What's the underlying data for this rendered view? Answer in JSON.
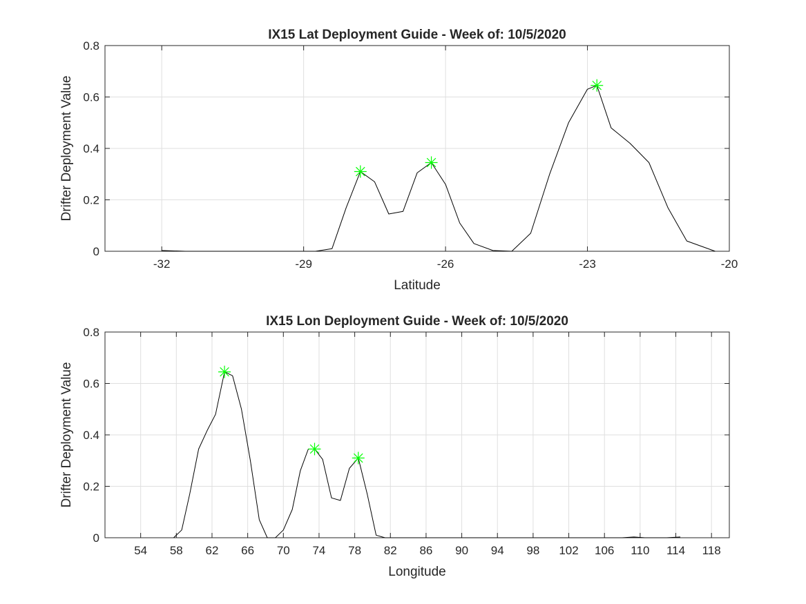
{
  "chart_data": [
    {
      "type": "line",
      "title": "IX15 Lat Deployment Guide - Week of: 10/5/2020",
      "xlabel": "Latitude",
      "ylabel": "Drifter Deployment Value",
      "xlim": [
        -33.2,
        -20
      ],
      "ylim": [
        0,
        0.8
      ],
      "xticks": [
        -32,
        -29,
        -26,
        -23,
        -20
      ],
      "xtick_labels": [
        "-32",
        "-29",
        "-26",
        "-23",
        "-20"
      ],
      "yticks": [
        0,
        0.2,
        0.4,
        0.6,
        0.8
      ],
      "ytick_labels": [
        "0",
        "0.2",
        "0.4",
        "0.6",
        "0.8"
      ],
      "grid": true,
      "series": [
        {
          "color": "#000000",
          "x": [
            -32.0,
            -31.5,
            -30.0,
            -29.0,
            -28.75,
            -28.4,
            -28.1,
            -27.8,
            -27.5,
            -27.2,
            -26.9,
            -26.6,
            -26.3,
            -26.0,
            -25.7,
            -25.4,
            -25.0,
            -24.6,
            -24.2,
            -23.8,
            -23.4,
            -23.0,
            -22.8,
            -22.5,
            -22.1,
            -21.7,
            -21.3,
            -20.9,
            -20.3
          ],
          "y": [
            0.003,
            0.0,
            0.0,
            0.0,
            0.0,
            0.01,
            0.17,
            0.31,
            0.27,
            0.145,
            0.155,
            0.305,
            0.345,
            0.26,
            0.11,
            0.03,
            0.003,
            0.0,
            0.07,
            0.3,
            0.5,
            0.63,
            0.645,
            0.48,
            0.42,
            0.345,
            0.17,
            0.04,
            0.0
          ]
        }
      ],
      "peaks": {
        "color": "#00ff00",
        "marker": "asterisk",
        "x": [
          -27.8,
          -26.3,
          -22.8
        ],
        "y": [
          0.31,
          0.345,
          0.645
        ]
      }
    },
    {
      "type": "line",
      "title": "IX15 Lon Deployment Guide - Week of: 10/5/2020",
      "xlabel": "Longitude",
      "ylabel": "Drifter Deployment Value",
      "xlim": [
        50,
        120
      ],
      "ylim": [
        0,
        0.8
      ],
      "xticks": [
        54,
        58,
        62,
        66,
        70,
        74,
        78,
        82,
        86,
        90,
        94,
        98,
        102,
        106,
        110,
        114,
        118
      ],
      "xtick_labels": [
        "54",
        "58",
        "62",
        "66",
        "70",
        "74",
        "78",
        "82",
        "86",
        "90",
        "94",
        "98",
        "102",
        "106",
        "110",
        "114",
        "118"
      ],
      "yticks": [
        0,
        0.2,
        0.4,
        0.6,
        0.8
      ],
      "ytick_labels": [
        "0",
        "0.2",
        "0.4",
        "0.6",
        "0.8"
      ],
      "grid": true,
      "series": [
        {
          "color": "#000000",
          "x": [
            57.7,
            58.6,
            59.5,
            60.5,
            61.5,
            62.4,
            63.4,
            64.3,
            65.3,
            66.3,
            67.3,
            68.2,
            69.1,
            70.0,
            71.0,
            71.9,
            72.8,
            73.5,
            74.4,
            75.4,
            76.4,
            77.4,
            78.4,
            79.4,
            80.4,
            81.4,
            83,
            100,
            108,
            109.3,
            110.5,
            113,
            114.5
          ],
          "y": [
            0.0,
            0.03,
            0.17,
            0.345,
            0.42,
            0.48,
            0.645,
            0.63,
            0.5,
            0.3,
            0.07,
            0.0,
            0.0,
            0.03,
            0.11,
            0.26,
            0.345,
            0.345,
            0.305,
            0.155,
            0.145,
            0.27,
            0.31,
            0.17,
            0.01,
            0.0,
            0.0,
            0.0,
            0.0,
            0.003,
            0.0,
            0.0,
            0.003
          ]
        }
      ],
      "peaks": {
        "color": "#00ff00",
        "marker": "asterisk",
        "x": [
          63.4,
          73.5,
          78.4
        ],
        "y": [
          0.645,
          0.345,
          0.31
        ]
      }
    }
  ]
}
